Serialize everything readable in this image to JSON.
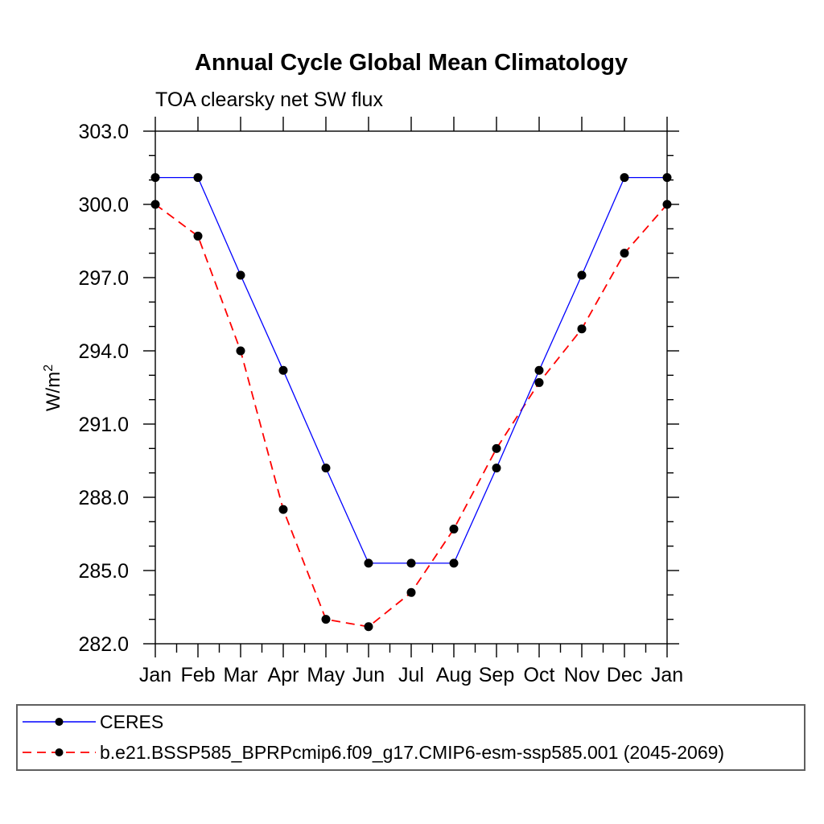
{
  "header": {
    "title": "Annual Cycle Global Mean Climatology",
    "subtitle": "TOA clearsky net SW flux"
  },
  "chart_data": {
    "type": "line",
    "title": "Annual Cycle Global Mean Climatology",
    "subtitle": "TOA clearsky net SW flux",
    "ylabel_base": "W/m",
    "ylabel_exponent": "2",
    "x_categories": [
      "Jan",
      "Feb",
      "Mar",
      "Apr",
      "May",
      "Jun",
      "Jul",
      "Aug",
      "Sep",
      "Oct",
      "Nov",
      "Dec",
      "Jan"
    ],
    "ylim": [
      282.0,
      303.0
    ],
    "ytick_major_step": 3.0,
    "ytick_minor_step": 1.0,
    "ytick_labels": [
      "282.0",
      "285.0",
      "288.0",
      "291.0",
      "294.0",
      "297.0",
      "300.0",
      "303.0"
    ],
    "grid": false,
    "frame": "box-with-outward-ticks",
    "legend_position": "bottom-left-boxed",
    "axis_color": "#000000",
    "marker_color": "#000000",
    "series": [
      {
        "name": "CERES",
        "color": "#0000ff",
        "line_style": "solid",
        "marker": "filled-circle",
        "values": [
          301.1,
          301.1,
          297.1,
          293.2,
          289.2,
          285.3,
          285.3,
          285.3,
          289.2,
          293.2,
          297.1,
          301.1,
          301.1
        ]
      },
      {
        "name": "b.e21.BSSP585_BPRPcmip6.f09_g17.CMIP6-esm-ssp585.001 (2045-2069)",
        "color": "#ff0000",
        "line_style": "dashed",
        "marker": "filled-circle",
        "values": [
          300.0,
          298.7,
          294.0,
          287.5,
          283.0,
          282.7,
          284.1,
          286.7,
          290.0,
          292.7,
          294.9,
          298.0,
          300.0
        ]
      }
    ]
  }
}
